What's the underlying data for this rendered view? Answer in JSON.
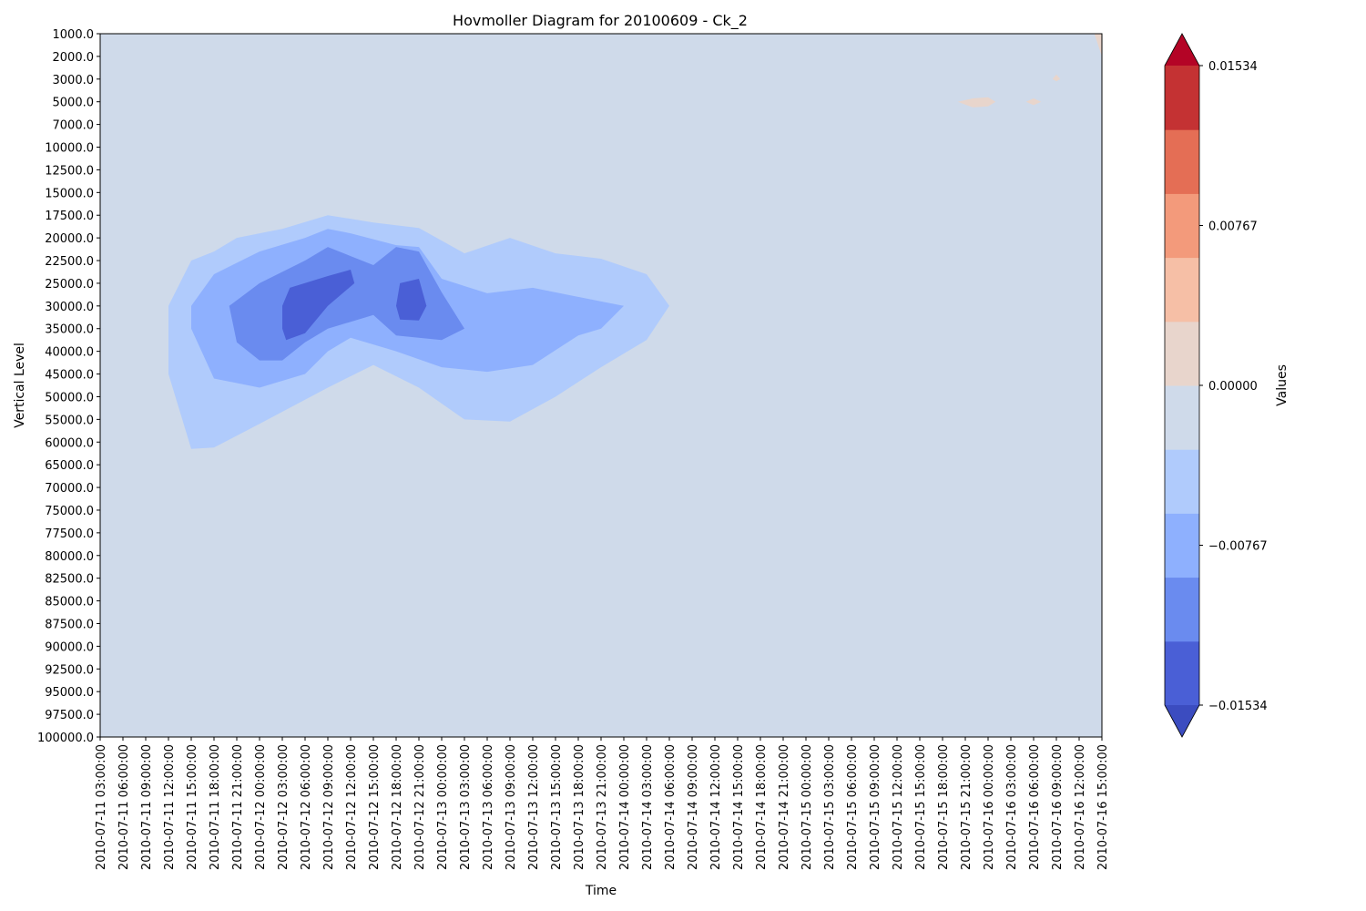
{
  "chart_data": {
    "type": "heatmap",
    "subtype": "filled-contour",
    "title": "Hovmoller Diagram for 20100609 - Ck_2",
    "xlabel": "Time",
    "ylabel": "Vertical Level",
    "colorbar_label": "Values",
    "colormap": "coolwarm",
    "x_ticks": [
      "2010-07-11 03:00:00",
      "2010-07-11 06:00:00",
      "2010-07-11 09:00:00",
      "2010-07-11 12:00:00",
      "2010-07-11 15:00:00",
      "2010-07-11 18:00:00",
      "2010-07-11 21:00:00",
      "2010-07-12 00:00:00",
      "2010-07-12 03:00:00",
      "2010-07-12 06:00:00",
      "2010-07-12 09:00:00",
      "2010-07-12 12:00:00",
      "2010-07-12 15:00:00",
      "2010-07-12 18:00:00",
      "2010-07-12 21:00:00",
      "2010-07-13 00:00:00",
      "2010-07-13 03:00:00",
      "2010-07-13 06:00:00",
      "2010-07-13 09:00:00",
      "2010-07-13 12:00:00",
      "2010-07-13 15:00:00",
      "2010-07-13 18:00:00",
      "2010-07-13 21:00:00",
      "2010-07-14 00:00:00",
      "2010-07-14 03:00:00",
      "2010-07-14 06:00:00",
      "2010-07-14 09:00:00",
      "2010-07-14 12:00:00",
      "2010-07-14 15:00:00",
      "2010-07-14 18:00:00",
      "2010-07-14 21:00:00",
      "2010-07-15 00:00:00",
      "2010-07-15 03:00:00",
      "2010-07-15 06:00:00",
      "2010-07-15 09:00:00",
      "2010-07-15 12:00:00",
      "2010-07-15 15:00:00",
      "2010-07-15 18:00:00",
      "2010-07-15 21:00:00",
      "2010-07-16 00:00:00",
      "2010-07-16 03:00:00",
      "2010-07-16 06:00:00",
      "2010-07-16 09:00:00",
      "2010-07-16 12:00:00",
      "2010-07-16 15:00:00"
    ],
    "y_ticks": [
      "1000.0",
      "2000.0",
      "3000.0",
      "5000.0",
      "7000.0",
      "10000.0",
      "12500.0",
      "15000.0",
      "17500.0",
      "20000.0",
      "22500.0",
      "25000.0",
      "30000.0",
      "35000.0",
      "40000.0",
      "45000.0",
      "50000.0",
      "55000.0",
      "60000.0",
      "65000.0",
      "70000.0",
      "75000.0",
      "77500.0",
      "80000.0",
      "82500.0",
      "85000.0",
      "87500.0",
      "90000.0",
      "92500.0",
      "95000.0",
      "97500.0",
      "100000.0"
    ],
    "y_inverted": true,
    "colorbar_ticks": [
      "0.01534",
      "0.00767",
      "0.00000",
      "−0.00767",
      "−0.01534"
    ],
    "colorbar_ticks_count": 5,
    "colorbar_extend": "both",
    "levels": [
      -0.0191,
      -0.01534,
      -0.01151,
      -0.00767,
      -0.00384,
      0.0,
      0.00384,
      0.00767,
      0.01151,
      0.01534,
      0.0191
    ],
    "level_colors": [
      "#3b4cc0",
      "#4a5fd6",
      "#6a8bef",
      "#8eb0fe",
      "#b0cbfc",
      "#cfdaea",
      "#e8d5cc",
      "#f6bfa6",
      "#f39a7b",
      "#e46e55",
      "#c43233",
      "#b40426"
    ],
    "background_value_range": [
      -0.00384,
      0.0
    ],
    "regions": [
      {
        "level": -0.00767,
        "color": "#b0cbfc",
        "outline": [
          [
            "2010-07-11 12:00:00",
            "30000.0"
          ],
          [
            "2010-07-11 13:30:00",
            "25000.0"
          ],
          [
            "2010-07-11 15:00:00",
            "22500.0"
          ],
          [
            "2010-07-11 18:00:00",
            "21500.0"
          ],
          [
            "2010-07-11 21:00:00",
            "20000.0"
          ],
          [
            "2010-07-12 03:00:00",
            "19000.0"
          ],
          [
            "2010-07-12 09:00:00",
            "17500.0"
          ],
          [
            "2010-07-12 15:00:00",
            "18300.0"
          ],
          [
            "2010-07-12 21:00:00",
            "18900.0"
          ],
          [
            "2010-07-13 03:00:00",
            "21700.0"
          ],
          [
            "2010-07-13 09:00:00",
            "20000.0"
          ],
          [
            "2010-07-13 15:00:00",
            "21700.0"
          ],
          [
            "2010-07-13 21:00:00",
            "22300.0"
          ],
          [
            "2010-07-14 03:00:00",
            "24000.0"
          ],
          [
            "2010-07-14 06:00:00",
            "30000.0"
          ],
          [
            "2010-07-14 03:00:00",
            "37500.0"
          ],
          [
            "2010-07-13 21:00:00",
            "43500.0"
          ],
          [
            "2010-07-13 15:00:00",
            "50000.0"
          ],
          [
            "2010-07-13 09:00:00",
            "55500.0"
          ],
          [
            "2010-07-13 03:00:00",
            "55000.0"
          ],
          [
            "2010-07-12 21:00:00",
            "48000.0"
          ],
          [
            "2010-07-12 15:00:00",
            "43000.0"
          ],
          [
            "2010-07-12 09:00:00",
            "48000.0"
          ],
          [
            "2010-07-12 00:00:00",
            "56000.0"
          ],
          [
            "2010-07-11 18:00:00",
            "61200.0"
          ],
          [
            "2010-07-11 15:00:00",
            "61500.0"
          ],
          [
            "2010-07-11 12:00:00",
            "45000.0"
          ]
        ]
      },
      {
        "level": -0.01151,
        "color": "#8eb0fe",
        "outline": [
          [
            "2010-07-11 15:00:00",
            "30000.0"
          ],
          [
            "2010-07-11 18:00:00",
            "24000.0"
          ],
          [
            "2010-07-12 00:00:00",
            "21500.0"
          ],
          [
            "2010-07-12 06:00:00",
            "20000.0"
          ],
          [
            "2010-07-12 09:00:00",
            "19000.0"
          ],
          [
            "2010-07-12 12:00:00",
            "19500.0"
          ],
          [
            "2010-07-12 18:00:00",
            "20800.0"
          ],
          [
            "2010-07-12 21:00:00",
            "21000.0"
          ],
          [
            "2010-07-13 00:00:00",
            "24500.0"
          ],
          [
            "2010-07-13 06:00:00",
            "27200.0"
          ],
          [
            "2010-07-13 12:00:00",
            "26000.0"
          ],
          [
            "2010-07-13 21:00:00",
            "29000.0"
          ],
          [
            "2010-07-14 00:00:00",
            "30000.0"
          ],
          [
            "2010-07-13 21:00:00",
            "35000.0"
          ],
          [
            "2010-07-13 18:00:00",
            "36500.0"
          ],
          [
            "2010-07-13 12:00:00",
            "43000.0"
          ],
          [
            "2010-07-13 06:00:00",
            "44500.0"
          ],
          [
            "2010-07-13 00:00:00",
            "43500.0"
          ],
          [
            "2010-07-12 18:00:00",
            "40000.0"
          ],
          [
            "2010-07-12 12:00:00",
            "37000.0"
          ],
          [
            "2010-07-12 09:00:00",
            "40000.0"
          ],
          [
            "2010-07-12 06:00:00",
            "45000.0"
          ],
          [
            "2010-07-12 00:00:00",
            "48000.0"
          ],
          [
            "2010-07-11 18:00:00",
            "46000.0"
          ],
          [
            "2010-07-11 15:00:00",
            "35000.0"
          ]
        ]
      },
      {
        "level": -0.01534,
        "color": "#6a8bef",
        "outline": [
          [
            "2010-07-11 20:00:00",
            "30000.0"
          ],
          [
            "2010-07-12 00:00:00",
            "25000.0"
          ],
          [
            "2010-07-12 06:00:00",
            "22500.0"
          ],
          [
            "2010-07-12 09:00:00",
            "21000.0"
          ],
          [
            "2010-07-12 12:00:00",
            "22000.0"
          ],
          [
            "2010-07-12 15:00:00",
            "23000.0"
          ],
          [
            "2010-07-12 18:00:00",
            "21000.0"
          ],
          [
            "2010-07-12 21:00:00",
            "21500.0"
          ],
          [
            "2010-07-13 00:00:00",
            "27000.0"
          ],
          [
            "2010-07-13 03:00:00",
            "35000.0"
          ],
          [
            "2010-07-13 00:00:00",
            "37500.0"
          ],
          [
            "2010-07-12 18:00:00",
            "36500.0"
          ],
          [
            "2010-07-12 15:00:00",
            "32000.0"
          ],
          [
            "2010-07-12 09:00:00",
            "35000.0"
          ],
          [
            "2010-07-12 06:00:00",
            "38000.0"
          ],
          [
            "2010-07-12 03:00:00",
            "42000.0"
          ],
          [
            "2010-07-12 00:00:00",
            "42000.0"
          ],
          [
            "2010-07-11 21:00:00",
            "38000.0"
          ]
        ]
      },
      {
        "level": -0.0191,
        "color": "#4a5fd6",
        "outline": [
          [
            "2010-07-12 03:00:00",
            "30000.0"
          ],
          [
            "2010-07-12 04:00:00",
            "26000.0"
          ],
          [
            "2010-07-12 09:00:00",
            "24200.0"
          ],
          [
            "2010-07-12 12:00:00",
            "23500.0"
          ],
          [
            "2010-07-12 12:30:00",
            "25000.0"
          ],
          [
            "2010-07-12 09:00:00",
            "30000.0"
          ],
          [
            "2010-07-12 06:00:00",
            "36000.0"
          ],
          [
            "2010-07-12 03:30:00",
            "37500.0"
          ],
          [
            "2010-07-12 03:00:00",
            "35000.0"
          ]
        ]
      },
      {
        "level": -0.0191,
        "color": "#4a5fd6",
        "outline": [
          [
            "2010-07-12 18:00:00",
            "30000.0"
          ],
          [
            "2010-07-12 18:30:00",
            "25000.0"
          ],
          [
            "2010-07-12 21:00:00",
            "24500.0"
          ],
          [
            "2010-07-12 22:00:00",
            "30000.0"
          ],
          [
            "2010-07-12 21:00:00",
            "33200.0"
          ],
          [
            "2010-07-12 18:30:00",
            "33000.0"
          ]
        ]
      },
      {
        "level": 0.0,
        "color": "#e8d5cc",
        "outline": [
          [
            "2010-07-15 20:00:00",
            "5000.0"
          ],
          [
            "2010-07-15 22:00:00",
            "4700.0"
          ],
          [
            "2010-07-16 00:00:00",
            "4600.0"
          ],
          [
            "2010-07-16 01:00:00",
            "5000.0"
          ],
          [
            "2010-07-16 00:00:00",
            "5400.0"
          ],
          [
            "2010-07-15 22:00:00",
            "5500.0"
          ]
        ]
      },
      {
        "level": 0.0,
        "color": "#e8d5cc",
        "outline": [
          [
            "2010-07-16 05:00:00",
            "5000.0"
          ],
          [
            "2010-07-16 06:00:00",
            "4700.0"
          ],
          [
            "2010-07-16 07:00:00",
            "5000.0"
          ],
          [
            "2010-07-16 06:00:00",
            "5300.0"
          ]
        ]
      },
      {
        "level": 0.0,
        "color": "#e8d5cc",
        "outline": [
          [
            "2010-07-16 08:30:00",
            "3000.0"
          ],
          [
            "2010-07-16 09:00:00",
            "2800.0"
          ],
          [
            "2010-07-16 09:30:00",
            "3000.0"
          ],
          [
            "2010-07-16 09:00:00",
            "3200.0"
          ]
        ]
      },
      {
        "level": 0.0,
        "color": "#e8d5cc",
        "outline": [
          [
            "2010-07-16 14:00:00",
            "1000.0"
          ],
          [
            "2010-07-16 15:00:00",
            "1000.0"
          ],
          [
            "2010-07-16 15:00:00",
            "2000.0"
          ]
        ]
      }
    ]
  }
}
